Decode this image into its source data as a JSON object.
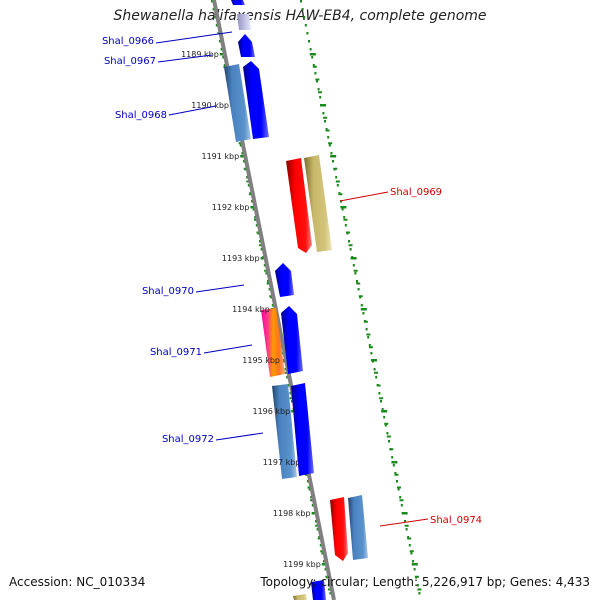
{
  "title": "Shewanella halifaxensis HAW-EB4, complete genome",
  "accession": "Accession: NC_010334",
  "topology": "Topology: circular; Length: 5,226,917 bp; Genes: 4,433",
  "colors": {
    "forward": "#0000ff",
    "forward_alt": "#4a82c0",
    "reverse": "#ff0000",
    "reverse_alt": "#c8b96a",
    "backbone": "#808080",
    "ticks": "#1a8a1a",
    "label_blue": "#0000c0",
    "label_red": "#d00000"
  },
  "ticks": [
    {
      "kbp": 1189,
      "label": "1189 kbp"
    },
    {
      "kbp": 1190,
      "label": "1190 kbp"
    },
    {
      "kbp": 1191,
      "label": "1191 kbp"
    },
    {
      "kbp": 1192,
      "label": "1192 kbp"
    },
    {
      "kbp": 1193,
      "label": "1193 kbp"
    },
    {
      "kbp": 1194,
      "label": "1194 kbp"
    },
    {
      "kbp": 1195,
      "label": "1195 kbp"
    },
    {
      "kbp": 1196,
      "label": "1196 kbp"
    },
    {
      "kbp": 1197,
      "label": "1197 kbp"
    },
    {
      "kbp": 1198,
      "label": "1198 kbp"
    },
    {
      "kbp": 1199,
      "label": "1199 kbp"
    }
  ],
  "labels": [
    {
      "text": "Shal_0966",
      "strand": "forward"
    },
    {
      "text": "Shal_0967",
      "strand": "forward"
    },
    {
      "text": "Shal_0968",
      "strand": "forward"
    },
    {
      "text": "Shal_0969",
      "strand": "reverse"
    },
    {
      "text": "Shal_0970",
      "strand": "forward"
    },
    {
      "text": "Shal_0971",
      "strand": "forward"
    },
    {
      "text": "Shal_0972",
      "strand": "forward"
    },
    {
      "text": "Shal_0974",
      "strand": "reverse"
    }
  ]
}
